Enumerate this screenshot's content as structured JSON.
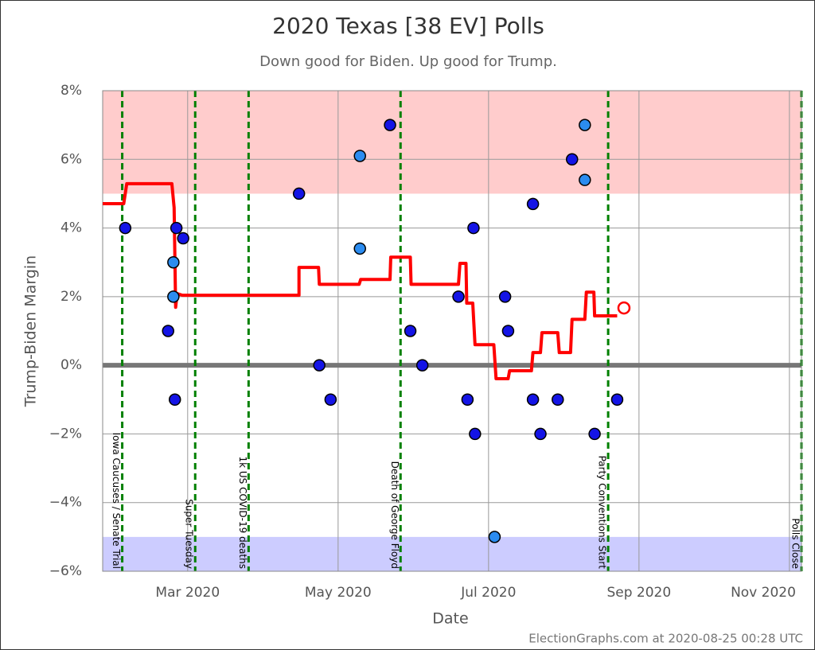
{
  "chart_data": {
    "type": "scatter",
    "title": "2020 Texas [38 EV] Polls",
    "subtitle": "Down good for Biden. Up good for Trump.",
    "x_label": "Date",
    "y_label": "Trump-Biden Margin",
    "footer": "ElectionGraphs.com at 2020-08-25 00:28 UTC",
    "xlim": [
      1.87,
      11.16
    ],
    "ylim": [
      -6,
      8
    ],
    "xticks": [
      {
        "value": 3,
        "label": "Mar 2020"
      },
      {
        "value": 5,
        "label": "May 2020"
      },
      {
        "value": 7,
        "label": "Jul 2020"
      },
      {
        "value": 9,
        "label": "Sep 2020"
      },
      {
        "value": 11,
        "label": "Nov 2020"
      }
    ],
    "yticks": [
      {
        "value": 8,
        "label": "8%"
      },
      {
        "value": 6,
        "label": "6%"
      },
      {
        "value": 4,
        "label": "4%"
      },
      {
        "value": 2,
        "label": "2%"
      },
      {
        "value": 0,
        "label": "0%"
      },
      {
        "value": -2,
        "label": "−2%"
      },
      {
        "value": -4,
        "label": "−4%"
      },
      {
        "value": -6,
        "label": "−6%"
      }
    ],
    "grid": true,
    "zero_line_color": "#777777",
    "bands": [
      {
        "from": 5,
        "to": 8,
        "color": "#ffcccc"
      },
      {
        "from": -6,
        "to": -5,
        "color": "#ccccff"
      }
    ],
    "events": [
      {
        "x": 2.13,
        "label": "Iowa Caucuses / Senate Trial"
      },
      {
        "x": 3.1,
        "label": "Super Tuesday"
      },
      {
        "x": 3.81,
        "label": "1k US COVID-19 deaths"
      },
      {
        "x": 5.83,
        "label": "Death of George Floyd"
      },
      {
        "x": 8.59,
        "label": "Party Conventions Start"
      },
      {
        "x": 11.16,
        "label": "Polls Close"
      }
    ],
    "event_color": "#008000",
    "series": [
      {
        "kind": "line",
        "color": "#ff0000",
        "x": [
          1.87,
          2.15,
          2.19,
          2.79,
          2.82,
          2.84,
          2.86,
          2.93,
          4.48,
          4.48,
          4.74,
          4.75,
          5.28,
          5.3,
          5.69,
          5.7,
          5.96,
          5.97,
          6.6,
          6.62,
          6.7,
          6.71,
          6.79,
          6.82,
          7.07,
          7.1,
          7.26,
          7.28,
          7.57,
          7.59,
          7.69,
          7.71,
          7.92,
          7.94,
          8.09,
          8.11,
          8.28,
          8.3,
          8.4,
          8.41,
          8.71
        ],
        "values": [
          4.71,
          4.71,
          5.29,
          5.29,
          4.59,
          1.69,
          2.09,
          2.04,
          2.04,
          2.85,
          2.85,
          2.36,
          2.36,
          2.5,
          2.5,
          3.15,
          3.15,
          2.36,
          2.36,
          2.97,
          2.97,
          1.81,
          1.81,
          0.6,
          0.6,
          -0.39,
          -0.39,
          -0.16,
          -0.16,
          0.37,
          0.37,
          0.95,
          0.95,
          0.37,
          0.37,
          1.34,
          1.34,
          2.13,
          2.13,
          1.44,
          1.44
        ]
      },
      {
        "kind": "open-marker",
        "color": "#ff0000",
        "x": [
          8.8
        ],
        "values": [
          1.67
        ]
      },
      {
        "kind": "marker",
        "color": "#1414e6",
        "x": [
          2.17,
          2.74,
          2.83,
          2.85,
          2.94,
          4.48,
          4.75,
          4.9,
          5.69,
          5.96,
          6.12,
          6.6,
          6.72,
          6.8,
          6.82,
          7.22,
          7.26,
          7.59,
          7.59,
          7.69,
          7.92,
          8.11,
          8.41,
          8.71
        ],
        "values": [
          4,
          1,
          -1,
          4,
          3.7,
          5,
          0,
          -1,
          7,
          1,
          0,
          2,
          -1,
          4,
          -2,
          2,
          1,
          4.7,
          -1,
          -2,
          -1,
          6,
          -2,
          -1
        ]
      },
      {
        "kind": "marker",
        "color": "#2b8cf0",
        "x": [
          2.81,
          2.81,
          5.29,
          5.29,
          7.08,
          8.28,
          8.28
        ],
        "values": [
          3,
          2,
          6.1,
          3.4,
          -5,
          7,
          5.4
        ]
      }
    ]
  }
}
